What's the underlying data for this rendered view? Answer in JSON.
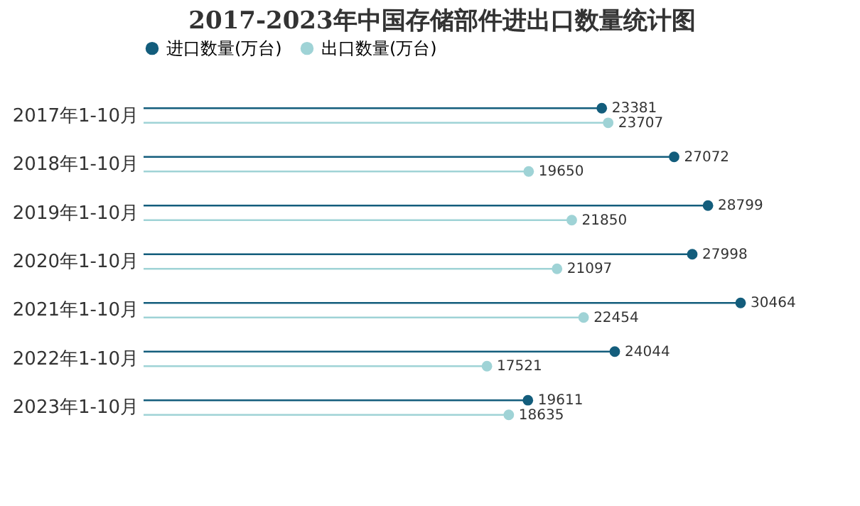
{
  "chart_data": {
    "type": "lollipop",
    "title": "2017-2023年中国存储部件进出口数量统计图",
    "orientation": "horizontal",
    "categories": [
      "2017年1-10月",
      "2018年1-10月",
      "2019年1-10月",
      "2020年1-10月",
      "2021年1-10月",
      "2022年1-10月",
      "2023年1-10月"
    ],
    "series": [
      {
        "name": "进口数量(万台)",
        "color": "#135d7c",
        "values": [
          23381,
          27072,
          28799,
          27998,
          30464,
          24044,
          19611
        ]
      },
      {
        "name": "出口数量(万台)",
        "color": "#9fd3d6",
        "values": [
          23707,
          19650,
          21850,
          21097,
          22454,
          17521,
          18635
        ]
      }
    ],
    "data_labels": true,
    "legend": "top",
    "marker": "circle",
    "tick_labels": "y"
  }
}
